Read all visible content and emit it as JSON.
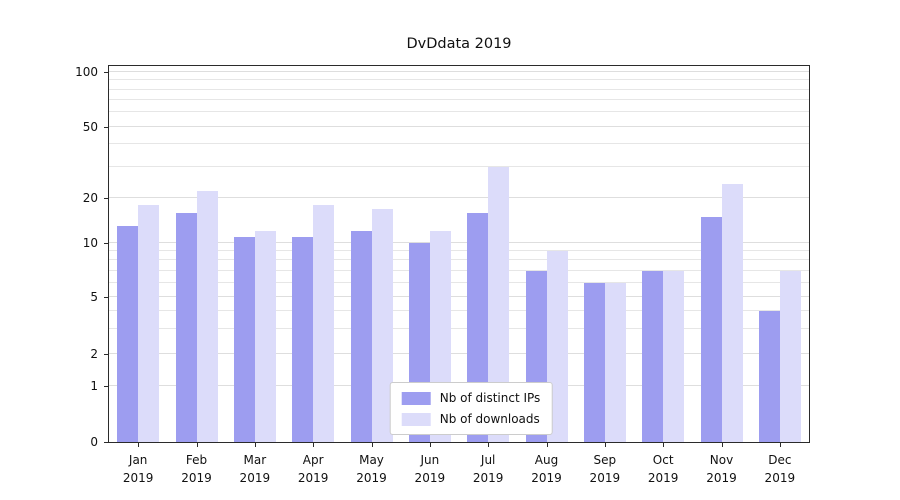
{
  "chart_data": {
    "type": "bar",
    "title": "DvDdata 2019",
    "categories": [
      "Jan\n2019",
      "Feb\n2019",
      "Mar\n2019",
      "Apr\n2019",
      "May\n2019",
      "Jun\n2019",
      "Jul\n2019",
      "Aug\n2019",
      "Sep\n2019",
      "Oct\n2019",
      "Nov\n2019",
      "Dec\n2019"
    ],
    "series": [
      {
        "name": "Nb of distinct IPs",
        "color": "#9d9df0",
        "values": [
          13,
          16,
          11,
          11,
          12,
          10,
          16,
          7,
          6,
          7,
          15,
          4
        ]
      },
      {
        "name": "Nb of downloads",
        "color": "#dcdcfa",
        "values": [
          18,
          22,
          12,
          18,
          17,
          12,
          30,
          9,
          6,
          7,
          24,
          7
        ]
      }
    ],
    "yticks": [
      0,
      1,
      2,
      5,
      10,
      20,
      50,
      100
    ],
    "ylim": [
      0,
      100
    ],
    "yscale": "log-like with 0 baseline",
    "xlabel": "",
    "ylabel": "",
    "grid": "horizontal gridlines at log minor and major ticks",
    "legend_position": "lower center"
  }
}
